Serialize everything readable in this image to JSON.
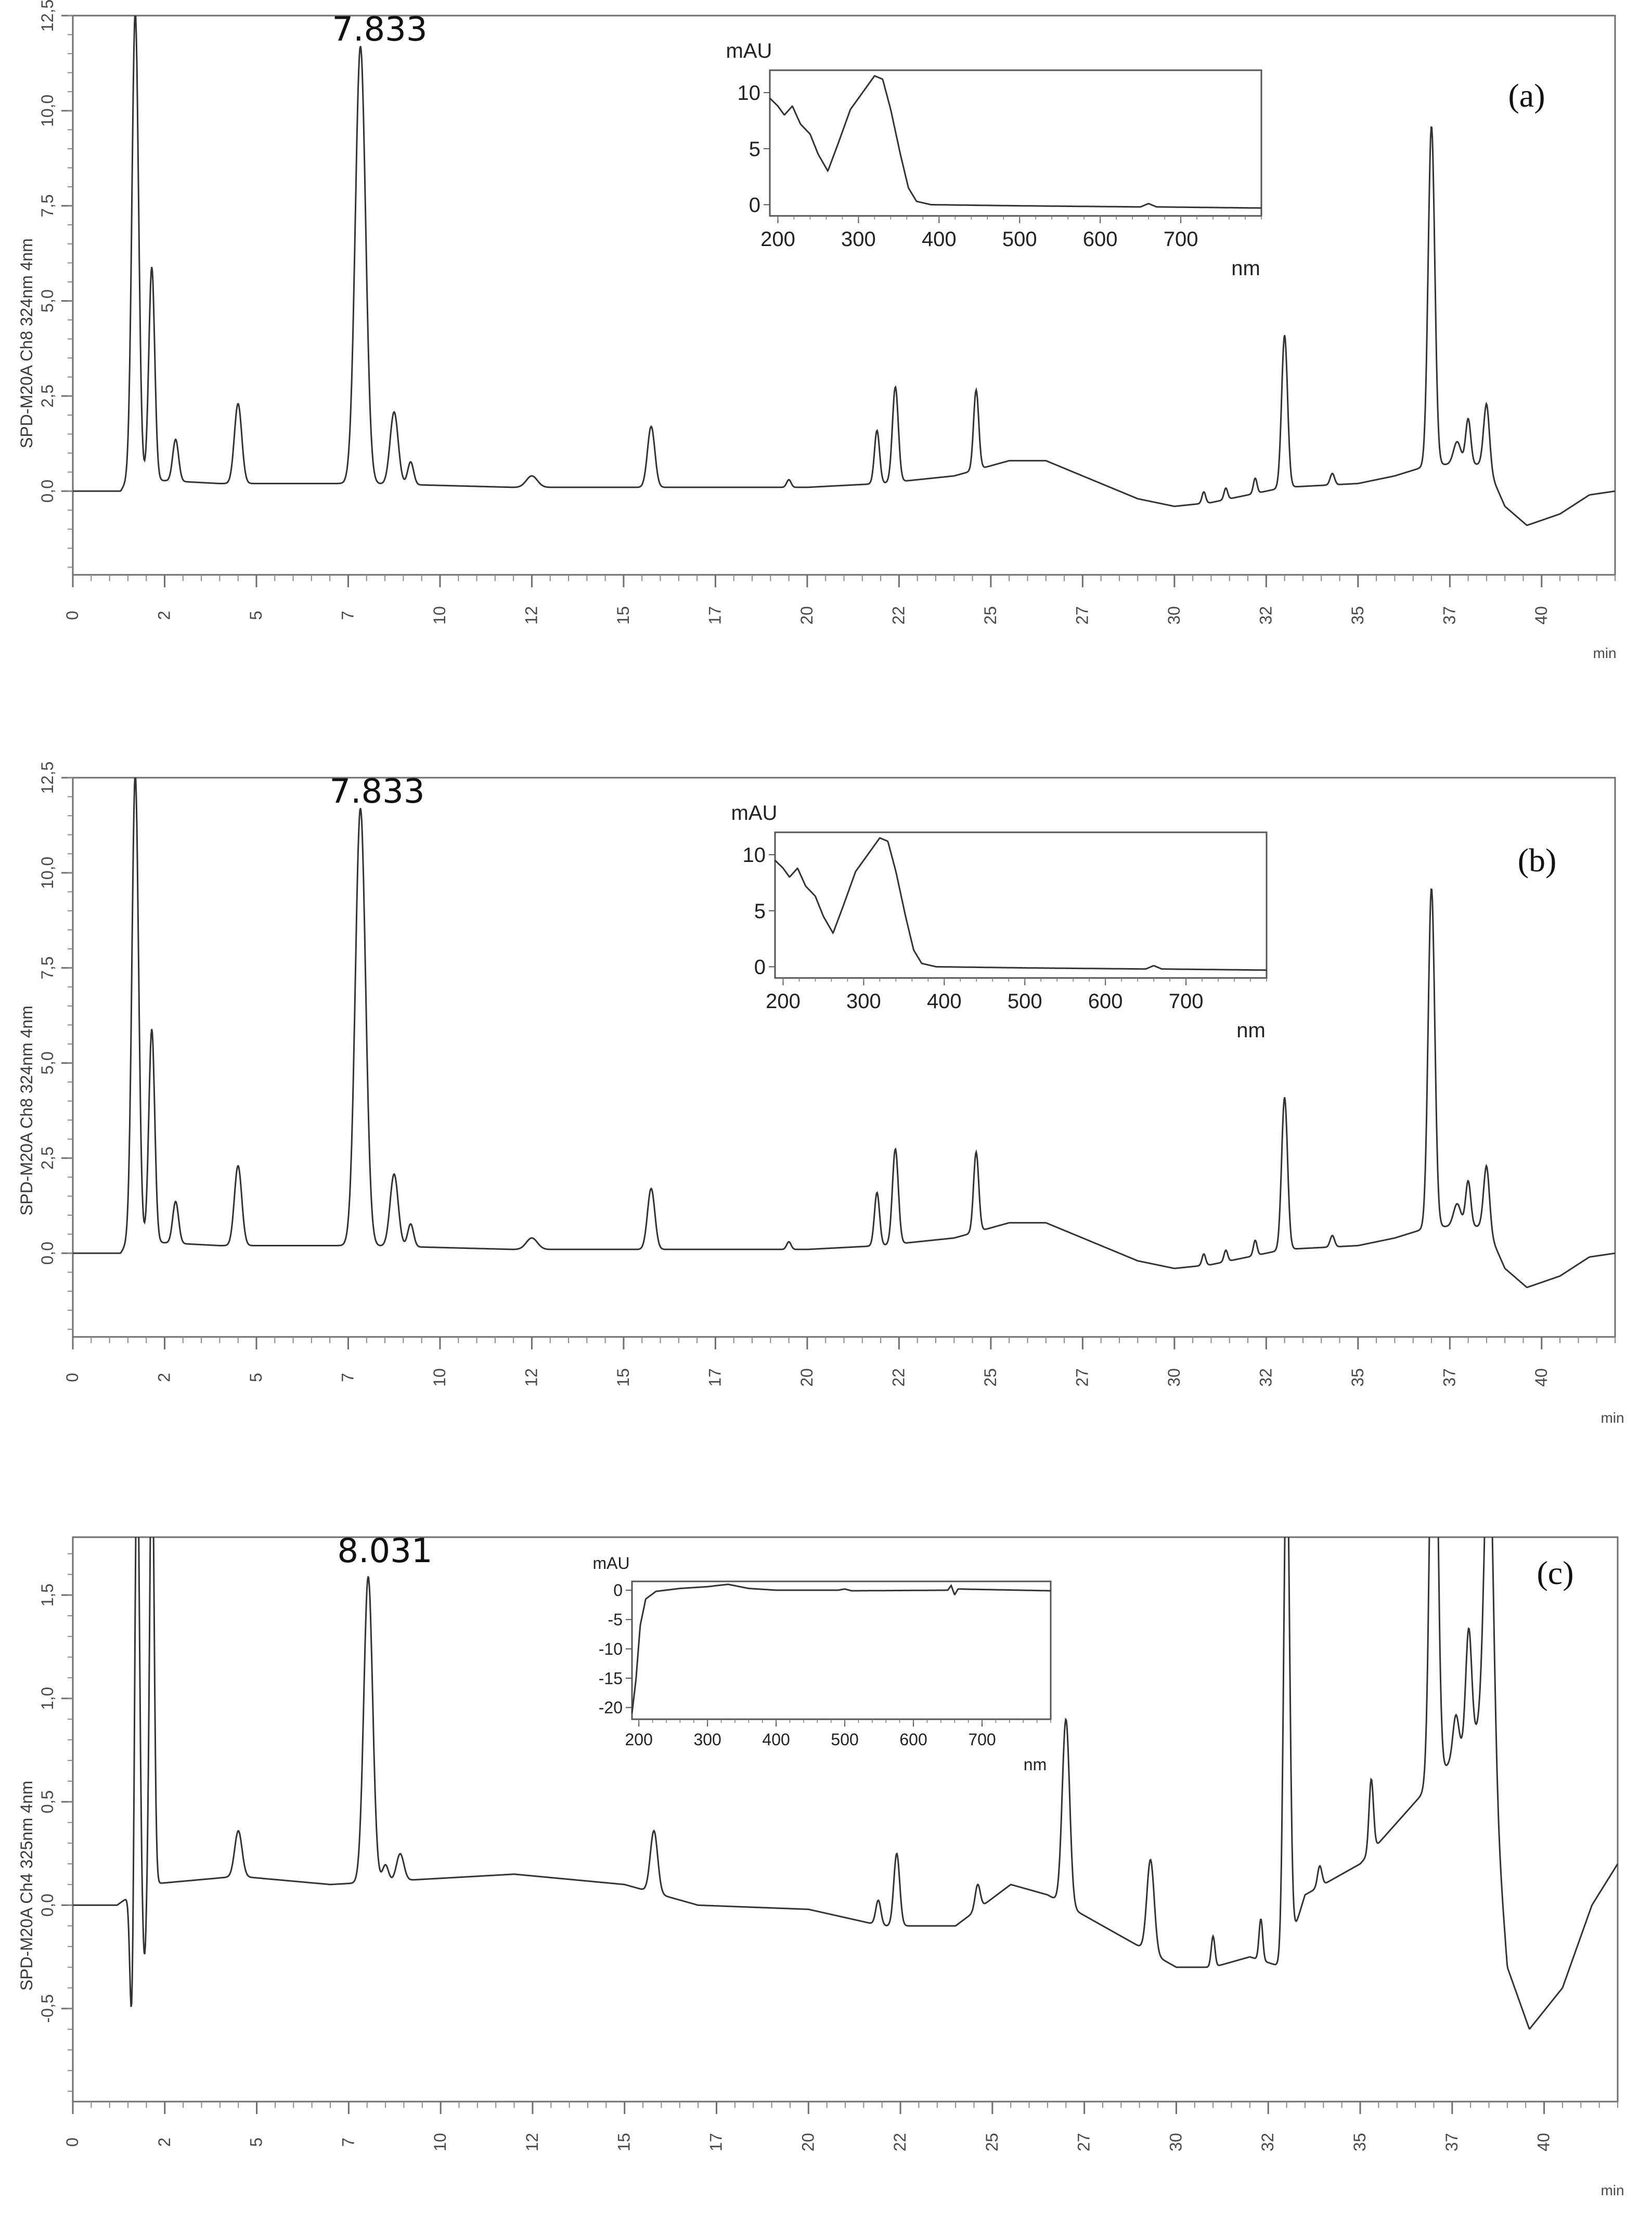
{
  "chart_data": [
    {
      "type": "line",
      "panel_label": "(a)",
      "peak_label": "7.833",
      "ylabel": "SPD-M20A Ch8 324nm 4nm",
      "xunit": "min",
      "xlim": [
        0,
        42
      ],
      "ylim": [
        -2.2,
        12.5
      ],
      "x_ticks": [
        "0",
        "2",
        "5",
        "7",
        "10",
        "12",
        "15",
        "17",
        "20",
        "22",
        "25",
        "27",
        "30",
        "32",
        "35",
        "37",
        "40"
      ],
      "y_ticks": [
        "12,5",
        "10,0",
        "7,5",
        "5,0",
        "2,5",
        "0,0"
      ],
      "y_tick_values": [
        12.5,
        10.0,
        7.5,
        5.0,
        2.5,
        0.0
      ],
      "baseline": [
        [
          0,
          0
        ],
        [
          1.3,
          0
        ],
        [
          1.5,
          0.3
        ],
        [
          2,
          0.3
        ],
        [
          4,
          0.2
        ],
        [
          8,
          0.2
        ],
        [
          12,
          0.1
        ],
        [
          16,
          0.1
        ],
        [
          20,
          0.1
        ],
        [
          22,
          0.2
        ],
        [
          24,
          0.4
        ],
        [
          25.5,
          0.8
        ],
        [
          26.5,
          0.8
        ],
        [
          27.5,
          0.4
        ],
        [
          29,
          -0.2
        ],
        [
          30,
          -0.4
        ],
        [
          31,
          -0.3
        ],
        [
          32,
          -0.1
        ],
        [
          33,
          0.1
        ],
        [
          35,
          0.2
        ],
        [
          36,
          0.4
        ],
        [
          37,
          0.7
        ],
        [
          38.5,
          0.7
        ],
        [
          39,
          -0.4
        ],
        [
          39.6,
          -0.9
        ],
        [
          40.5,
          -0.6
        ],
        [
          41.3,
          -0.1
        ],
        [
          42,
          0
        ]
      ],
      "peaks": [
        [
          1.7,
          12.3,
          0.09
        ],
        [
          2.15,
          5.6,
          0.08
        ],
        [
          2.8,
          1.1,
          0.08
        ],
        [
          4.5,
          2.1,
          0.1
        ],
        [
          7.833,
          11.5,
          0.14
        ],
        [
          8.75,
          1.9,
          0.11
        ],
        [
          9.2,
          0.6,
          0.08
        ],
        [
          12.5,
          0.3,
          0.15
        ],
        [
          15.75,
          1.6,
          0.1
        ],
        [
          19.5,
          0.2,
          0.06
        ],
        [
          21.9,
          1.4,
          0.07
        ],
        [
          22.4,
          2.5,
          0.08
        ],
        [
          24.6,
          2.1,
          0.07
        ],
        [
          30.8,
          0.3,
          0.05
        ],
        [
          31.4,
          0.3,
          0.05
        ],
        [
          32.2,
          0.4,
          0.05
        ],
        [
          33.0,
          4.0,
          0.08
        ],
        [
          34.3,
          0.3,
          0.06
        ],
        [
          37.0,
          8.9,
          0.09
        ],
        [
          37.7,
          0.6,
          0.1
        ],
        [
          38.0,
          1.2,
          0.07
        ],
        [
          38.5,
          1.6,
          0.08
        ]
      ],
      "inset": {
        "ylabel": "mAU",
        "xlabel": "nm",
        "x_ticks": [
          "200",
          "300",
          "400",
          "500",
          "600",
          "700"
        ],
        "y_ticks": [
          "10",
          "5",
          "0"
        ],
        "xlim": [
          190,
          800
        ],
        "ylim": [
          -1,
          12
        ],
        "spectrum": [
          [
            190,
            9.5
          ],
          [
            200,
            8.8
          ],
          [
            208,
            8.0
          ],
          [
            218,
            8.8
          ],
          [
            228,
            7.2
          ],
          [
            240,
            6.3
          ],
          [
            250,
            4.5
          ],
          [
            262,
            3.0
          ],
          [
            275,
            5.5
          ],
          [
            290,
            8.5
          ],
          [
            305,
            10.0
          ],
          [
            320,
            11.5
          ],
          [
            330,
            11.2
          ],
          [
            340,
            8.5
          ],
          [
            352,
            4.5
          ],
          [
            362,
            1.5
          ],
          [
            372,
            0.3
          ],
          [
            390,
            0
          ],
          [
            500,
            -0.1
          ],
          [
            650,
            -0.2
          ],
          [
            660,
            0.1
          ],
          [
            670,
            -0.2
          ],
          [
            800,
            -0.3
          ]
        ]
      }
    },
    {
      "type": "line",
      "panel_label": "(b)",
      "peak_label": "7.833",
      "ylabel": "SPD-M20A Ch8 324nm 4nm",
      "xunit": "min",
      "xlim": [
        0,
        42
      ],
      "ylim": [
        -2.2,
        12.5
      ],
      "x_ticks": [
        "0",
        "2",
        "5",
        "7",
        "10",
        "12",
        "15",
        "17",
        "20",
        "22",
        "25",
        "27",
        "30",
        "32",
        "35",
        "37",
        "40"
      ],
      "y_ticks": [
        "12,5",
        "10,0",
        "7,5",
        "5,0",
        "2,5",
        "0,0"
      ],
      "y_tick_values": [
        12.5,
        10.0,
        7.5,
        5.0,
        2.5,
        0.0
      ],
      "baseline": [
        [
          0,
          0
        ],
        [
          1.3,
          0
        ],
        [
          1.5,
          0.3
        ],
        [
          2,
          0.3
        ],
        [
          4,
          0.2
        ],
        [
          8,
          0.2
        ],
        [
          12,
          0.1
        ],
        [
          16,
          0.1
        ],
        [
          20,
          0.1
        ],
        [
          22,
          0.2
        ],
        [
          24,
          0.4
        ],
        [
          25.5,
          0.8
        ],
        [
          26.5,
          0.8
        ],
        [
          27.5,
          0.4
        ],
        [
          29,
          -0.2
        ],
        [
          30,
          -0.4
        ],
        [
          31,
          -0.3
        ],
        [
          32,
          -0.1
        ],
        [
          33,
          0.1
        ],
        [
          35,
          0.2
        ],
        [
          36,
          0.4
        ],
        [
          37,
          0.7
        ],
        [
          38.5,
          0.7
        ],
        [
          39,
          -0.4
        ],
        [
          39.6,
          -0.9
        ],
        [
          40.5,
          -0.6
        ],
        [
          41.3,
          -0.1
        ],
        [
          42,
          0
        ]
      ],
      "peaks": [
        [
          1.7,
          12.3,
          0.09
        ],
        [
          2.15,
          5.6,
          0.08
        ],
        [
          2.8,
          1.1,
          0.08
        ],
        [
          4.5,
          2.1,
          0.1
        ],
        [
          7.833,
          11.5,
          0.14
        ],
        [
          8.75,
          1.9,
          0.11
        ],
        [
          9.2,
          0.6,
          0.08
        ],
        [
          12.5,
          0.3,
          0.15
        ],
        [
          15.75,
          1.6,
          0.1
        ],
        [
          19.5,
          0.2,
          0.06
        ],
        [
          21.9,
          1.4,
          0.07
        ],
        [
          22.4,
          2.5,
          0.08
        ],
        [
          24.6,
          2.1,
          0.07
        ],
        [
          30.8,
          0.3,
          0.05
        ],
        [
          31.4,
          0.3,
          0.05
        ],
        [
          32.2,
          0.4,
          0.05
        ],
        [
          33.0,
          4.0,
          0.08
        ],
        [
          34.3,
          0.3,
          0.06
        ],
        [
          37.0,
          8.9,
          0.09
        ],
        [
          37.7,
          0.6,
          0.1
        ],
        [
          38.0,
          1.2,
          0.07
        ],
        [
          38.5,
          1.6,
          0.08
        ]
      ],
      "inset": {
        "ylabel": "mAU",
        "xlabel": "nm",
        "x_ticks": [
          "200",
          "300",
          "400",
          "500",
          "600",
          "700"
        ],
        "y_ticks": [
          "10",
          "5",
          "0"
        ],
        "xlim": [
          190,
          800
        ],
        "ylim": [
          -1,
          12
        ],
        "spectrum": [
          [
            190,
            9.5
          ],
          [
            200,
            8.8
          ],
          [
            208,
            8.0
          ],
          [
            218,
            8.8
          ],
          [
            228,
            7.2
          ],
          [
            240,
            6.3
          ],
          [
            250,
            4.5
          ],
          [
            262,
            3.0
          ],
          [
            275,
            5.5
          ],
          [
            290,
            8.5
          ],
          [
            305,
            10.0
          ],
          [
            320,
            11.5
          ],
          [
            330,
            11.2
          ],
          [
            340,
            8.5
          ],
          [
            352,
            4.5
          ],
          [
            362,
            1.5
          ],
          [
            372,
            0.3
          ],
          [
            390,
            0
          ],
          [
            500,
            -0.1
          ],
          [
            650,
            -0.2
          ],
          [
            660,
            0.1
          ],
          [
            670,
            -0.2
          ],
          [
            800,
            -0.3
          ]
        ]
      }
    },
    {
      "type": "line",
      "panel_label": "(c)",
      "peak_label": "8.031",
      "ylabel": "SPD-M20A Ch4 325nm 4nm",
      "xunit": "min",
      "xlim": [
        0,
        42
      ],
      "ylim": [
        -0.95,
        1.78
      ],
      "x_ticks": [
        "0",
        "2",
        "5",
        "7",
        "10",
        "12",
        "15",
        "17",
        "20",
        "22",
        "25",
        "27",
        "30",
        "32",
        "35",
        "37",
        "40"
      ],
      "y_ticks": [
        "1,5",
        "1,0",
        "0,5",
        "0,0",
        "-0,5"
      ],
      "y_tick_values": [
        1.5,
        1.0,
        0.5,
        0.0,
        -0.5
      ],
      "baseline": [
        [
          0,
          0
        ],
        [
          1.2,
          0
        ],
        [
          2,
          0.1
        ],
        [
          4.5,
          0.14
        ],
        [
          7,
          0.1
        ],
        [
          9,
          0.12
        ],
        [
          12,
          0.15
        ],
        [
          15,
          0.1
        ],
        [
          17,
          0
        ],
        [
          20,
          -0.02
        ],
        [
          22,
          -0.1
        ],
        [
          24,
          -0.1
        ],
        [
          25.5,
          0.1
        ],
        [
          26.5,
          0.05
        ],
        [
          27.5,
          -0.05
        ],
        [
          29,
          -0.2
        ],
        [
          30,
          -0.3
        ],
        [
          31,
          -0.3
        ],
        [
          32,
          -0.25
        ],
        [
          32.9,
          -0.3
        ],
        [
          33.5,
          0.05
        ],
        [
          35,
          0.2
        ],
        [
          37,
          0.6
        ],
        [
          38.5,
          0.9
        ],
        [
          39,
          -0.3
        ],
        [
          39.6,
          -0.6
        ],
        [
          40.5,
          -0.4
        ],
        [
          41.3,
          0
        ],
        [
          42,
          0.2
        ]
      ],
      "peaks": [
        [
          1.6,
          -0.62,
          0.05
        ],
        [
          1.75,
          2.2,
          0.06
        ],
        [
          1.95,
          -0.35,
          0.05
        ],
        [
          2.15,
          2.2,
          0.06
        ],
        [
          4.5,
          0.22,
          0.1
        ],
        [
          8.031,
          1.48,
          0.12
        ],
        [
          8.5,
          0.08,
          0.08
        ],
        [
          8.9,
          0.13,
          0.1
        ],
        [
          15.8,
          0.3,
          0.1
        ],
        [
          21.9,
          0.12,
          0.07
        ],
        [
          22.4,
          0.35,
          0.08
        ],
        [
          24.6,
          0.12,
          0.07
        ],
        [
          27.0,
          0.9,
          0.1
        ],
        [
          29.3,
          0.45,
          0.1
        ],
        [
          31.0,
          0.15,
          0.05
        ],
        [
          32.3,
          0.2,
          0.05
        ],
        [
          33.0,
          2.5,
          0.08
        ],
        [
          33.9,
          0.1,
          0.06
        ],
        [
          35.3,
          0.35,
          0.06
        ],
        [
          37.0,
          2.5,
          0.1
        ],
        [
          37.6,
          0.2,
          0.08
        ],
        [
          37.95,
          0.55,
          0.08
        ],
        [
          38.5,
          1.5,
          0.12
        ]
      ],
      "inset": {
        "ylabel": "mAU",
        "xlabel": "nm",
        "x_ticks": [
          "200",
          "300",
          "400",
          "500",
          "600",
          "700"
        ],
        "y_ticks": [
          "0",
          "-5",
          "-10",
          "-15",
          "-20"
        ],
        "xlim": [
          190,
          800
        ],
        "ylim": [
          -22,
          1.5
        ],
        "spectrum": [
          [
            190,
            -21
          ],
          [
            196,
            -15
          ],
          [
            202,
            -6
          ],
          [
            210,
            -1.5
          ],
          [
            225,
            -0.2
          ],
          [
            260,
            0.3
          ],
          [
            300,
            0.6
          ],
          [
            330,
            1.0
          ],
          [
            360,
            0.3
          ],
          [
            400,
            0
          ],
          [
            490,
            0
          ],
          [
            500,
            0.2
          ],
          [
            510,
            -0.1
          ],
          [
            650,
            0
          ],
          [
            655,
            0.8
          ],
          [
            660,
            -0.8
          ],
          [
            665,
            0.2
          ],
          [
            800,
            -0.1
          ]
        ]
      }
    }
  ]
}
